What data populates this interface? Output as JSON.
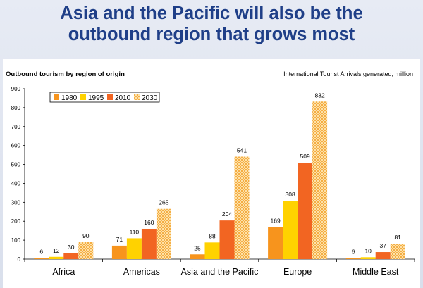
{
  "slide": {
    "title_line1": "Asia and the Pacific will also be the",
    "title_line2": "outbound region that grows most"
  },
  "chart_data": {
    "type": "bar",
    "title": "Outbound tourism by region of origin",
    "unit_note": "International Tourist Arrivals generated, million",
    "categories": [
      "Africa",
      "Americas",
      "Asia and the Pacific",
      "Europe",
      "Middle East"
    ],
    "series": [
      {
        "name": "1980",
        "values": [
          6,
          71,
          25,
          169,
          6
        ],
        "color": "#f7941d"
      },
      {
        "name": "1995",
        "values": [
          12,
          110,
          88,
          308,
          10
        ],
        "color": "#ffd200"
      },
      {
        "name": "2010",
        "values": [
          30,
          160,
          204,
          509,
          37
        ],
        "color": "#f26522"
      },
      {
        "name": "2030",
        "values": [
          90,
          265,
          541,
          832,
          81
        ],
        "color": "#fbc865"
      }
    ],
    "yticks": [
      "0",
      "100",
      "200",
      "300",
      "400",
      "500",
      "600",
      "700",
      "800",
      "900"
    ],
    "ylim": [
      0,
      900
    ],
    "grid": false,
    "legend_position": "top-left"
  }
}
